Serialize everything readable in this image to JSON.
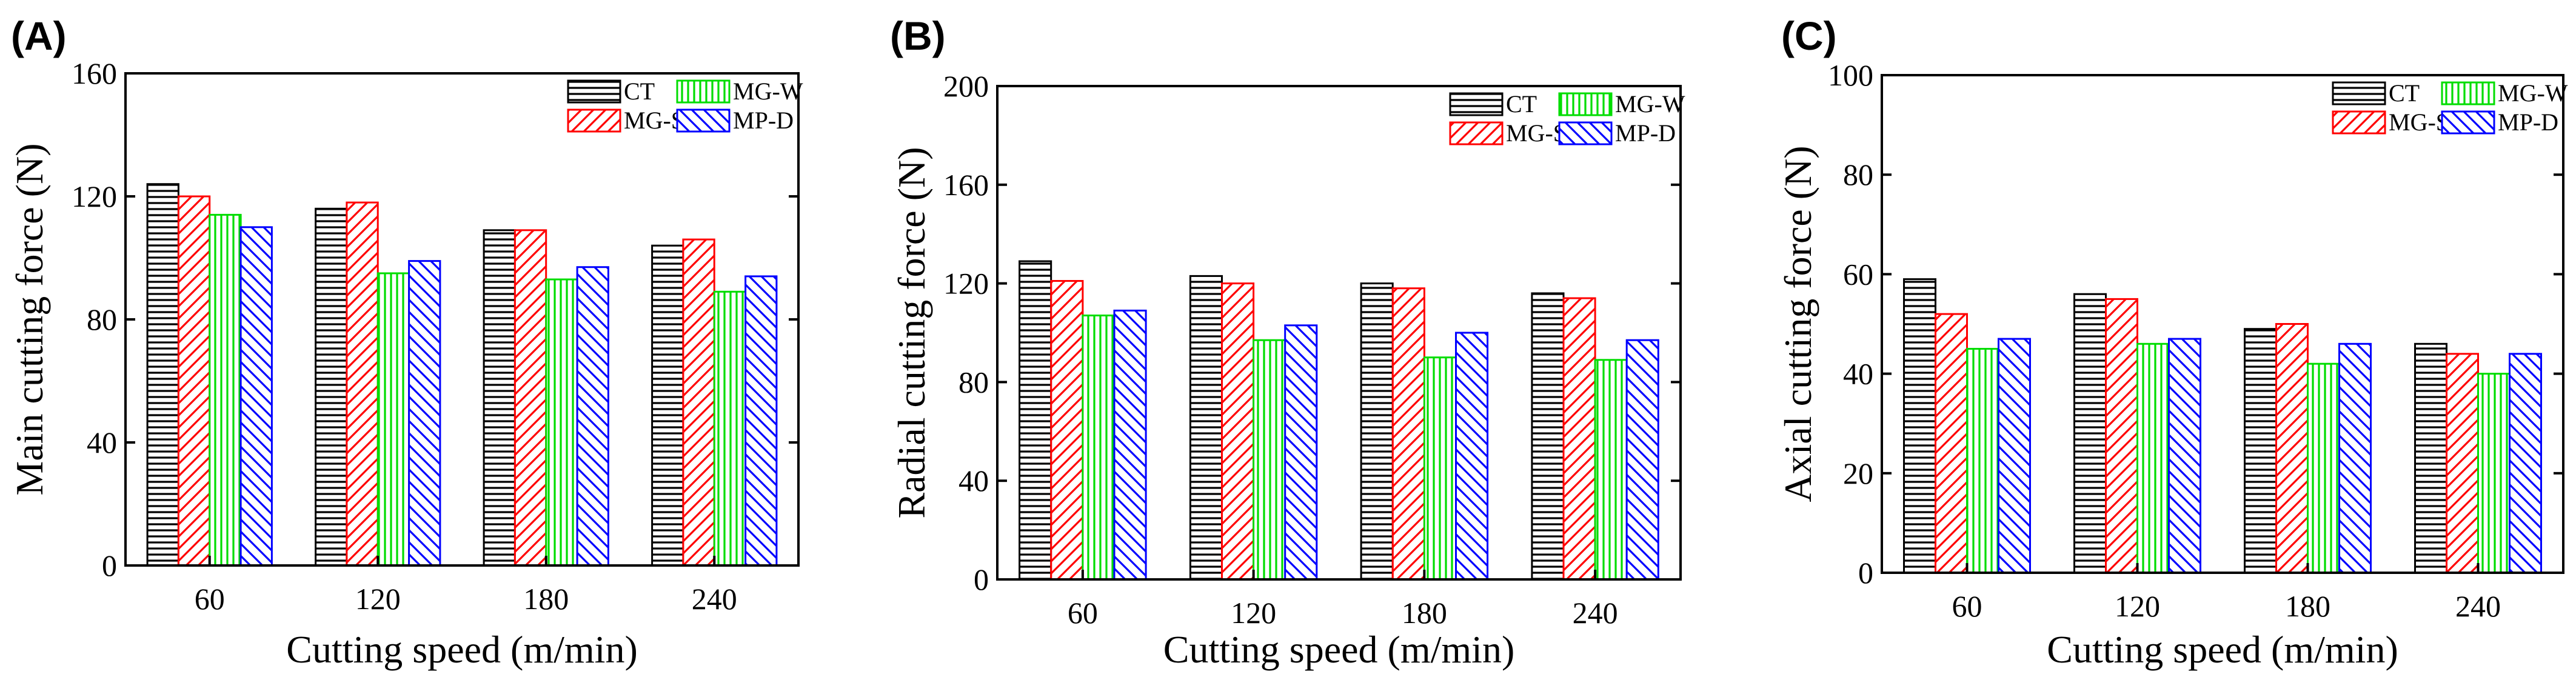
{
  "series_style": {
    "CT": {
      "color": "#000000",
      "pattern": "horizontal"
    },
    "MG-S": {
      "color": "#ff0000",
      "pattern": "diagonal-up"
    },
    "MG-W": {
      "color": "#00dd00",
      "pattern": "vertical"
    },
    "MP-D": {
      "color": "#0000ff",
      "pattern": "diagonal-down"
    }
  },
  "legend_order": [
    "CT",
    "MG-W",
    "MG-S",
    "MP-D"
  ],
  "chart_data": [
    {
      "panel": "(A)",
      "type": "bar",
      "categories": [
        "60",
        "120",
        "180",
        "240"
      ],
      "series": [
        {
          "name": "CT",
          "values": [
            124,
            116,
            109,
            104
          ]
        },
        {
          "name": "MG-S",
          "values": [
            120,
            118,
            109,
            106
          ]
        },
        {
          "name": "MG-W",
          "values": [
            114,
            95,
            93,
            89
          ]
        },
        {
          "name": "MP-D",
          "values": [
            110,
            99,
            97,
            94
          ]
        }
      ],
      "xlabel": "Cutting speed (m/min)",
      "ylabel": "Main cutting force (N)",
      "ylim": [
        0,
        160
      ],
      "yticks": [
        0,
        40,
        80,
        120,
        160
      ],
      "legend": "top-right"
    },
    {
      "panel": "(B)",
      "type": "bar",
      "categories": [
        "60",
        "120",
        "180",
        "240"
      ],
      "series": [
        {
          "name": "CT",
          "values": [
            129,
            123,
            120,
            116
          ]
        },
        {
          "name": "MG-S",
          "values": [
            121,
            120,
            118,
            114
          ]
        },
        {
          "name": "MG-W",
          "values": [
            107,
            97,
            90,
            89
          ]
        },
        {
          "name": "MP-D",
          "values": [
            109,
            103,
            100,
            97
          ]
        }
      ],
      "xlabel": "Cutting speed (m/min)",
      "ylabel": "Radial cutting force (N)",
      "ylim": [
        0,
        200
      ],
      "yticks": [
        0,
        40,
        80,
        120,
        160,
        200
      ],
      "legend": "top-right"
    },
    {
      "panel": "(C)",
      "type": "bar",
      "categories": [
        "60",
        "120",
        "180",
        "240"
      ],
      "series": [
        {
          "name": "CT",
          "values": [
            59,
            56,
            49,
            46
          ]
        },
        {
          "name": "MG-S",
          "values": [
            52,
            55,
            50,
            44
          ]
        },
        {
          "name": "MG-W",
          "values": [
            45,
            46,
            42,
            40
          ]
        },
        {
          "name": "MP-D",
          "values": [
            47,
            47,
            46,
            44
          ]
        }
      ],
      "xlabel": "Cutting speed (m/min)",
      "ylabel": "Axial cutting force (N)",
      "ylim": [
        0,
        100
      ],
      "yticks": [
        0,
        20,
        40,
        60,
        80,
        100
      ],
      "legend": "top-right"
    }
  ]
}
